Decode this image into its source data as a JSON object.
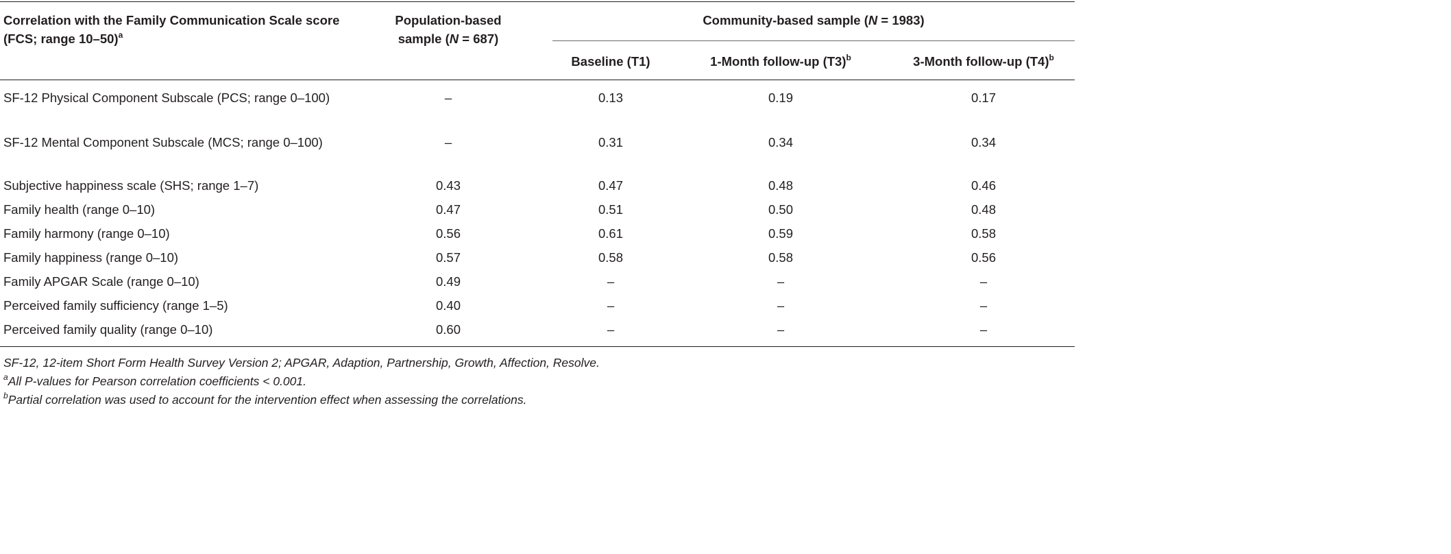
{
  "table": {
    "header": {
      "col1": "Correlation with the Family Communication Scale score (FCS; range 10–50)",
      "col1_sup": "a",
      "population_prefix": "Population-based sample (",
      "population_n": "N",
      "population_suffix": " = 687)",
      "community_prefix": "Community-based sample (",
      "community_n": "N",
      "community_suffix": " = 1983)",
      "t1": "Baseline (T1)",
      "t3": "1-Month follow-up (T3)",
      "t3_sup": "b",
      "t4": "3-Month follow-up (T4)",
      "t4_sup": "b"
    },
    "rows": [
      {
        "label": "SF-12 Physical Component Subscale (PCS; range 0–100)",
        "pop": "–",
        "t1": "0.13",
        "t3": "0.19",
        "t4": "0.17"
      },
      {
        "label": "SF-12 Mental Component Subscale (MCS; range 0–100)",
        "pop": "–",
        "t1": "0.31",
        "t3": "0.34",
        "t4": "0.34"
      },
      {
        "label": "Subjective happiness scale (SHS; range 1–7)",
        "pop": "0.43",
        "t1": "0.47",
        "t3": "0.48",
        "t4": "0.46"
      },
      {
        "label": "Family health (range 0–10)",
        "pop": "0.47",
        "t1": "0.51",
        "t3": "0.50",
        "t4": "0.48"
      },
      {
        "label": "Family harmony (range 0–10)",
        "pop": "0.56",
        "t1": "0.61",
        "t3": "0.59",
        "t4": "0.58"
      },
      {
        "label": "Family happiness (range 0–10)",
        "pop": "0.57",
        "t1": "0.58",
        "t3": "0.58",
        "t4": "0.56"
      },
      {
        "label": "Family APGAR Scale (range 0–10)",
        "pop": "0.49",
        "t1": "–",
        "t3": "–",
        "t4": "–"
      },
      {
        "label": "Perceived family sufficiency (range 1–5)",
        "pop": "0.40",
        "t1": "–",
        "t3": "–",
        "t4": "–"
      },
      {
        "label": "Perceived family quality (range 0–10)",
        "pop": "0.60",
        "t1": "–",
        "t3": "–",
        "t4": "–"
      }
    ]
  },
  "footnotes": {
    "abbrev": "SF-12, 12-item Short Form Health Survey Version 2; APGAR, Adaption, Partnership, Growth, Affection, Resolve.",
    "a_mark": "a",
    "a_text": "All P-values for Pearson correlation coefficients < 0.001.",
    "b_mark": "b",
    "b_text": "Partial correlation was used to account for the intervention effect when assessing the correlations."
  }
}
